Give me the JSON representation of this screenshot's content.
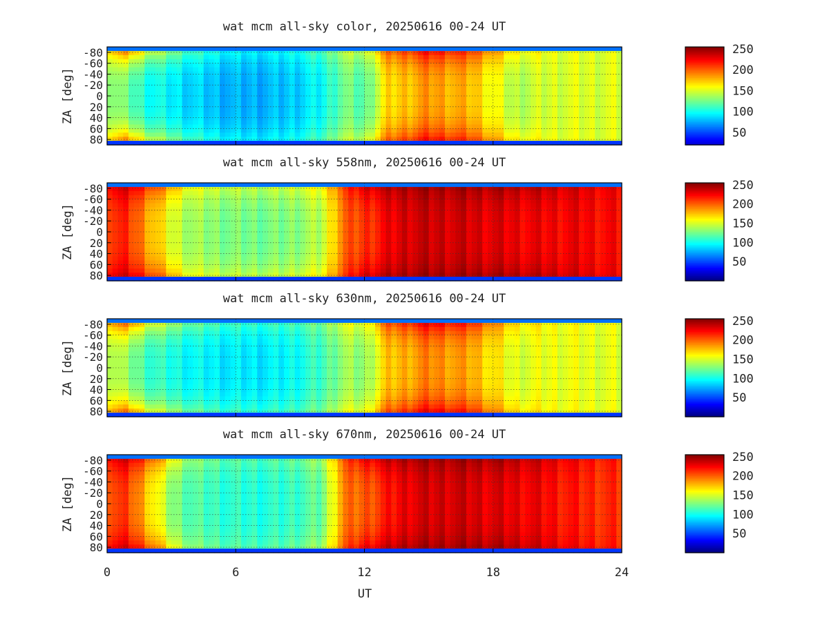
{
  "figure": {
    "xlabel": "UT",
    "ylabel": "ZA [deg]",
    "x_ticks": [
      "0",
      "6",
      "12",
      "18",
      "24"
    ],
    "y_ticks": [
      "-80",
      "-60",
      "-40",
      "-20",
      "0",
      "20",
      "40",
      "60",
      "80"
    ],
    "colorbar_ticks": [
      "250",
      "200",
      "150",
      "100",
      "50"
    ]
  },
  "chart_data": [
    {
      "type": "heatmap",
      "title": "wat mcm all-sky color, 20250616 00-24 UT",
      "xlabel": "",
      "ylabel": "ZA [deg]",
      "xlim": [
        0,
        24
      ],
      "ylim": [
        -90,
        90
      ],
      "x_ticks": [
        0,
        6,
        12,
        18,
        24
      ],
      "y_ticks": [
        -80,
        -60,
        -40,
        -20,
        0,
        20,
        40,
        60,
        80
      ],
      "colorbar": {
        "range": [
          20,
          255
        ],
        "ticks": [
          50,
          100,
          150,
          200,
          250
        ],
        "colormap": "jet"
      },
      "grid": true,
      "intensity_profile": {
        "ut": [
          0,
          1,
          2,
          4,
          6,
          8,
          10,
          11,
          12,
          13,
          15,
          17,
          19,
          21,
          24
        ],
        "center": [
          140,
          120,
          100,
          85,
          75,
          78,
          95,
          125,
          115,
          165,
          185,
          175,
          140,
          150,
          150
        ],
        "south_edge": [
          190,
          210,
          165,
          120,
          100,
          100,
          120,
          150,
          150,
          205,
          235,
          220,
          170,
          155,
          150
        ]
      }
    },
    {
      "type": "heatmap",
      "title": "wat mcm all-sky 558nm, 20250616 00-24 UT",
      "xlabel": "",
      "ylabel": "ZA [deg]",
      "xlim": [
        0,
        24
      ],
      "ylim": [
        -90,
        90
      ],
      "x_ticks": [
        0,
        6,
        12,
        18,
        24
      ],
      "y_ticks": [
        -80,
        -60,
        -40,
        -20,
        0,
        20,
        40,
        60,
        80
      ],
      "colorbar": {
        "range": [
          0,
          255
        ],
        "ticks": [
          50,
          100,
          150,
          200,
          250
        ],
        "colormap": "jet"
      },
      "grid": true,
      "intensity_profile": {
        "ut": [
          0,
          1,
          2,
          3,
          4,
          6,
          8,
          10,
          11,
          12,
          14,
          16,
          18,
          20,
          22,
          24
        ],
        "center": [
          215,
          210,
          180,
          150,
          135,
          125,
          125,
          140,
          195,
          210,
          235,
          235,
          230,
          225,
          225,
          220
        ],
        "south_edge": [
          235,
          240,
          220,
          190,
          160,
          150,
          150,
          165,
          210,
          240,
          250,
          250,
          250,
          245,
          235,
          225
        ]
      }
    },
    {
      "type": "heatmap",
      "title": "wat mcm all-sky 630nm, 20250616 00-24 UT",
      "xlabel": "",
      "ylabel": "ZA [deg]",
      "xlim": [
        0,
        24
      ],
      "ylim": [
        -90,
        90
      ],
      "x_ticks": [
        0,
        6,
        12,
        18,
        24
      ],
      "y_ticks": [
        -80,
        -60,
        -40,
        -20,
        0,
        20,
        40,
        60,
        80
      ],
      "colorbar": {
        "range": [
          0,
          255
        ],
        "ticks": [
          50,
          100,
          150,
          200,
          250
        ],
        "colormap": "jet"
      },
      "grid": true,
      "intensity_profile": {
        "ut": [
          0,
          1,
          2,
          4,
          6,
          8,
          10,
          11,
          12,
          13,
          15,
          17,
          19,
          21,
          24
        ],
        "center": [
          150,
          130,
          110,
          95,
          90,
          92,
          110,
          135,
          130,
          170,
          190,
          180,
          150,
          155,
          150
        ],
        "south_edge": [
          200,
          215,
          170,
          130,
          115,
          115,
          130,
          160,
          160,
          210,
          240,
          225,
          175,
          160,
          155
        ]
      }
    },
    {
      "type": "heatmap",
      "title": "wat mcm all-sky 670nm, 20250616 00-24 UT",
      "xlabel": "UT",
      "ylabel": "ZA [deg]",
      "xlim": [
        0,
        24
      ],
      "ylim": [
        -90,
        90
      ],
      "x_ticks": [
        0,
        6,
        12,
        18,
        24
      ],
      "y_ticks": [
        -80,
        -60,
        -40,
        -20,
        0,
        20,
        40,
        60,
        80
      ],
      "colorbar": {
        "range": [
          0,
          255
        ],
        "ticks": [
          50,
          100,
          150,
          200,
          250
        ],
        "colormap": "jet"
      },
      "grid": true,
      "intensity_profile": {
        "ut": [
          0,
          1,
          2,
          3,
          4,
          6,
          8,
          10,
          11,
          12,
          14,
          16,
          18,
          20,
          22,
          24
        ],
        "center": [
          210,
          205,
          170,
          130,
          115,
          105,
          105,
          120,
          190,
          200,
          230,
          235,
          230,
          225,
          215,
          210
        ],
        "south_edge": [
          235,
          240,
          215,
          170,
          135,
          120,
          120,
          140,
          205,
          235,
          250,
          250,
          250,
          240,
          225,
          215
        ]
      }
    }
  ]
}
